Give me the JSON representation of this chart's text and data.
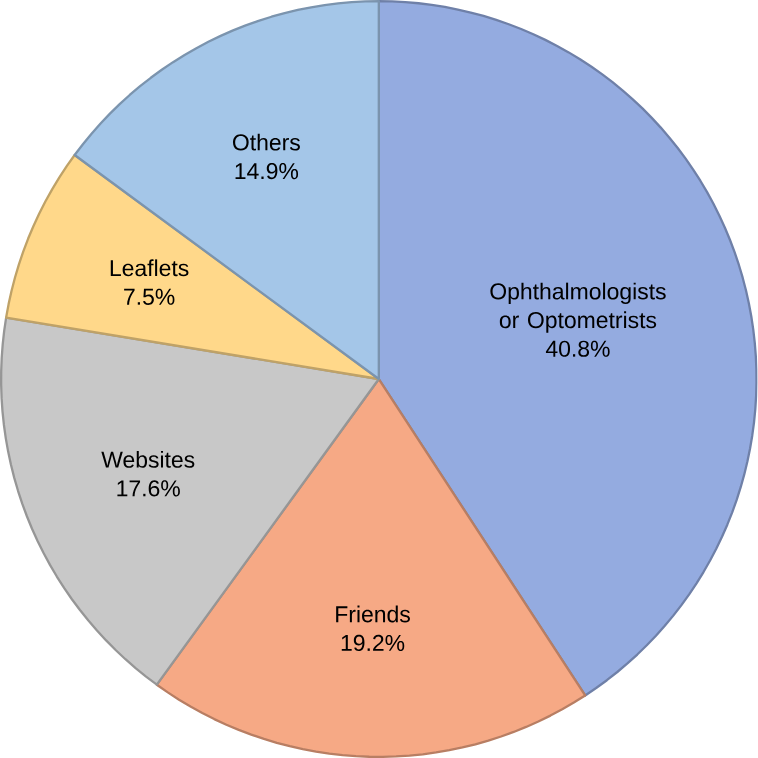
{
  "chart_data": {
    "type": "pie",
    "categories": [
      "Ophthalmologists or Optometrists",
      "Friends",
      "Websites",
      "Leaflets",
      "Others"
    ],
    "values": [
      40.8,
      19.2,
      17.6,
      7.5,
      14.9
    ],
    "value_labels": [
      "40.8%",
      "19.2%",
      "17.6%",
      "7.5%",
      "14.9%"
    ],
    "colors": [
      "#94abe0",
      "#f6a985",
      "#c8c8c8",
      "#ffd88a",
      "#a4c6e8"
    ]
  }
}
